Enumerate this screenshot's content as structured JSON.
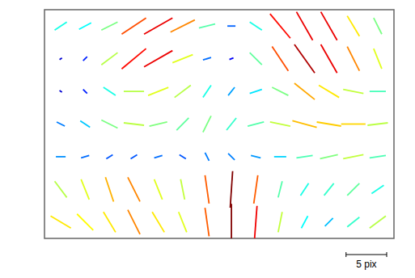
{
  "chart_data": {
    "type": "quiver",
    "xlim": [
      0,
      43
    ],
    "ylim": [
      0,
      28
    ],
    "tick_labels": false,
    "x": [
      2,
      5,
      8,
      11,
      14,
      17,
      20,
      23,
      26,
      29,
      32,
      35,
      38,
      41
    ],
    "y": [
      26,
      22,
      18,
      14,
      10,
      6,
      2
    ],
    "u": [
      [
        1.5,
        1.5,
        2,
        3,
        3.5,
        3,
        2,
        1,
        1.5,
        2.5,
        2,
        2,
        1.5,
        1
      ],
      [
        0.3,
        0.5,
        2,
        3,
        3.5,
        2.5,
        1,
        0.5,
        1.5,
        2,
        2.5,
        2,
        1.5,
        1
      ],
      [
        0.3,
        0.5,
        1.5,
        2.5,
        2.5,
        2,
        1,
        0.8,
        1.5,
        2,
        2.5,
        2.5,
        2.5,
        2
      ],
      [
        1,
        1.2,
        2,
        2.5,
        2.2,
        1.5,
        1,
        1.2,
        2,
        2.5,
        3,
        3,
        3,
        2.5
      ],
      [
        1.2,
        1,
        0.8,
        0.8,
        1,
        0.8,
        0.5,
        0.8,
        1.2,
        1.5,
        2,
        2.2,
        2.5,
        2
      ],
      [
        -1.5,
        -1,
        -1,
        -1.5,
        -1,
        -0.5,
        -0.5,
        0.3,
        0.5,
        0.5,
        1,
        1.2,
        1.5,
        1.5
      ],
      [
        -2.5,
        -2,
        -1.5,
        -1.5,
        -1.5,
        -1,
        -0.5,
        0,
        0.3,
        0.5,
        0.8,
        1,
        1.5,
        2
      ]
    ],
    "v": [
      [
        1,
        0.8,
        1,
        2,
        2,
        1.5,
        0.5,
        0,
        -1,
        -3,
        -3.5,
        -3.5,
        -2.5,
        -2
      ],
      [
        0.2,
        0.5,
        1.5,
        2.5,
        2,
        1,
        0.3,
        0.2,
        -1.5,
        -3,
        -3.5,
        -3.5,
        -3,
        -2.5
      ],
      [
        -0.2,
        -0.5,
        -1,
        0,
        1,
        1.5,
        1.5,
        1,
        0.5,
        -1,
        -2,
        -1.5,
        -0.5,
        0
      ],
      [
        -0.5,
        -0.8,
        -1,
        -0.3,
        0.5,
        1.5,
        2,
        1.5,
        0.5,
        -0.5,
        -0.8,
        -0.5,
        0,
        0.3
      ],
      [
        0,
        0.3,
        0.5,
        0.5,
        0.3,
        -0.5,
        -1,
        -0.8,
        -0.3,
        0,
        0.3,
        0.5,
        0.5,
        0.3
      ],
      [
        2,
        2.5,
        3,
        3,
        2.5,
        2.5,
        3.5,
        4.5,
        3.5,
        2,
        1.5,
        1.5,
        1.5,
        1
      ],
      [
        1.5,
        2,
        2.5,
        3,
        2.5,
        2.5,
        3.5,
        4.5,
        4,
        2.5,
        1.5,
        1,
        1.2,
        1.5
      ]
    ],
    "scale_bar": {
      "length": 5,
      "label": "5 pix"
    }
  }
}
